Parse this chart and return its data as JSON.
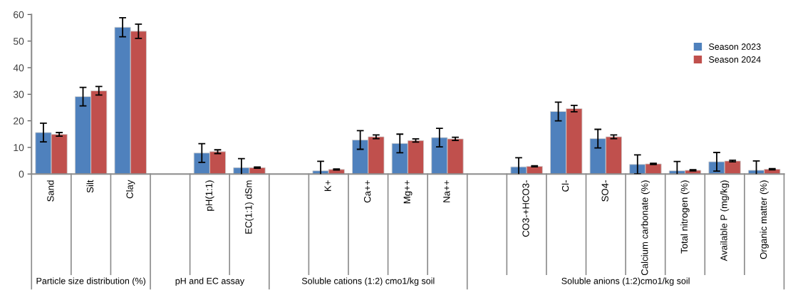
{
  "chart_data": {
    "type": "bar",
    "categories": [
      "Sand",
      "Silt",
      "Clay",
      null,
      "pH(1:1)",
      "EC(1:1) dSm",
      null,
      "K+",
      "Ca++",
      "Mg++",
      "Na++",
      null,
      "CO3-+HCO3-",
      "Cl-",
      "SO4-",
      "Calcium carbonate (%)",
      "Total nitrogen (%)",
      "Available P (mg/kg)",
      "Organic matter (%)"
    ],
    "series": [
      {
        "name": "Season 2023",
        "color": "#4f81bd",
        "values": [
          15.6,
          29.1,
          55.2,
          null,
          7.9,
          2.4,
          null,
          1.2,
          12.8,
          11.5,
          13.7,
          null,
          2.7,
          23.5,
          13.3,
          3.6,
          1.2,
          4.6,
          1.4
        ],
        "errors": [
          3.5,
          3.5,
          3.6,
          null,
          3.5,
          3.4,
          null,
          3.6,
          3.5,
          3.5,
          3.5,
          null,
          3.4,
          3.5,
          3.5,
          3.6,
          3.5,
          3.5,
          3.5
        ]
      },
      {
        "name": "Season 2024",
        "color": "#c0504d",
        "values": [
          14.9,
          31.3,
          53.7,
          null,
          8.4,
          2.4,
          null,
          1.7,
          14.0,
          12.6,
          13.2,
          null,
          2.9,
          24.6,
          14.0,
          3.8,
          1.4,
          4.9,
          1.8
        ],
        "errors": [
          0.7,
          1.6,
          2.7,
          null,
          0.7,
          0.2,
          null,
          0.2,
          0.7,
          0.6,
          0.6,
          null,
          0.2,
          1.2,
          0.7,
          0.2,
          0.2,
          0.3,
          0.2
        ]
      }
    ],
    "annotations": [
      "Particle size distribution (%)",
      "pH and EC assay",
      "Soluble cations (1:2) cmo1/kg soil",
      "Soluble anions (1:2)cmo1/kg soil"
    ],
    "ylim": [
      0,
      60
    ],
    "yticks": [
      0,
      10,
      20,
      30,
      40,
      50,
      60
    ],
    "grid": false,
    "legend": "top right"
  }
}
